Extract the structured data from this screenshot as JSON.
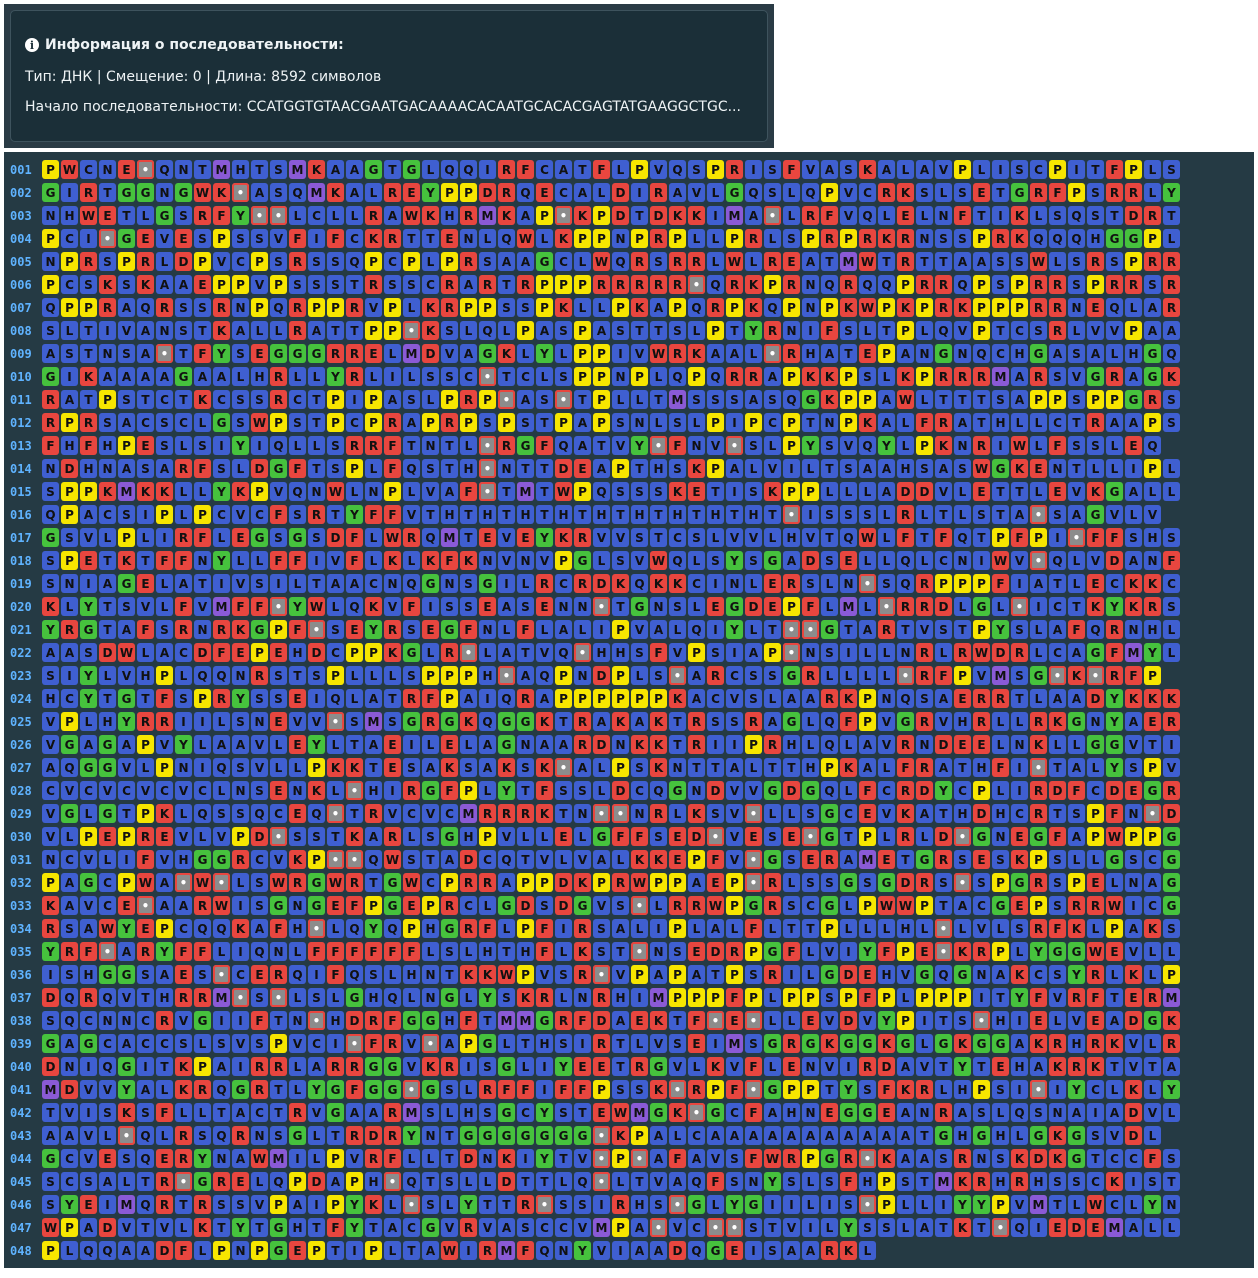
{
  "info": {
    "icon": "info-circle-icon",
    "title": "Информация о последовательности:",
    "meta": "Тип: ДНК | Смещение: 0 | Длина: 8592 символов",
    "start": "Начало последовательности: CCATGGTGTAACGAATGACAAAACACAATGCACACGAGTATGAAGGCTGC..."
  },
  "colors": {
    "red": "#e8463f",
    "blue": "#3f5fd1",
    "green": "#46c23d",
    "yellow": "#f7e600",
    "purple": "#8a5ad6",
    "gap": "#dcdcdc"
  },
  "rows": [
    {
      "n": "001",
      "s": "PWCNE*QNTMHTSMKAAGTGLQQIRFCATFLPVQSPRISFVASKALAVPLISCPITFPLS"
    },
    {
      "n": "002",
      "s": "GIRTGGNGWK*ASQMKALREYPPDRQECALDIRAVLGQSLQPVCRKSLSETGRFPSRRLY"
    },
    {
      "n": "003",
      "s": "NHWETLGSRFY**LCLLRAWKHRMKAP*KPDTDKKIMA*LRFVQLELNFTIKLSQSTDRT"
    },
    {
      "n": "004",
      "s": "PCI*GEVESPSSVFIFCKRTTENLQWLKPPNPRPLLPRLSPRPRKRNSSPRKQQQHGGPL"
    },
    {
      "n": "005",
      "s": "NPRSPRLDPVCPSRSSQPCPLPRSAAGCLWQRSRRLWLREATMWTRTTAASSWLSRSPRR"
    },
    {
      "n": "006",
      "s": "PCSKSKAAEPPVPSSSTRSSCRARTRPPPRRRRR*QRKPRNQRQQPRRQPSPRRSPRRSR"
    },
    {
      "n": "007",
      "s": "QPPRAQRSSRNPQRPPRVPLKRPPSSPKLLPKAPQRPKQPNPKWPKPRKPPPRRNEQLAR"
    },
    {
      "n": "008",
      "s": "SLTIVANSTKALLRATTPP*KSLQLPASPASTTSLPTYRNIFSLTPLQVPTCSRLVVPAA"
    },
    {
      "n": "009",
      "s": "ASTNSA*TFYSEGGGRRELMDVAGKLYLPPIVWRKAAL*RHATEPANGNQCHGASALHGQ"
    },
    {
      "n": "010",
      "s": "GIKAAAAGAALHRLLYRLILSSC*TCLSPPNPLQPQRRAPKKPSLKPRRRMARSVGRAGK"
    },
    {
      "n": "011",
      "s": "RATPSTCTKCSSRCTPIPASLPRP*AS*TPLLTMSSSASQGKPPAWLTTTSAPPSPPGRS"
    },
    {
      "n": "012",
      "s": "RPRSACSCLGSWPSTPCPRAPRPSPSTPAPSNLSLPIPCPTNPKALFRATHLLCTRAAPS"
    },
    {
      "n": "013",
      "s": "FHFHPESLSIYIQLLSRRFTNTL*RGFQATVY*FNV*SLPYSVQYLPKNRIWLFSSLEQ"
    },
    {
      "n": "014",
      "s": "NDHNASARFSLDGFTSPLFQSTH*NTTDEAPTHSKPALVILTSAAHSASWGKENTLLIPL"
    },
    {
      "n": "015",
      "s": "SPPKMKKLLYKPVQNWLNPLVAF*TMTWPQSSSKETISKPPLLLADDVLETTLEVKGALL"
    },
    {
      "n": "016",
      "s": "QPACSIPLPCVCFSRTYFFVTHTHTHTHTHTHTHTHTHT*ISSSLRLTLSTA*SAGVLV"
    },
    {
      "n": "017",
      "s": "GSVLPLIRFLEGSGSDFLWRQMTEVEYKRVVSTCSLVVLHVTQWLFTFQTPFPI*FFSHS"
    },
    {
      "n": "018",
      "s": "SPETKTFFNYLLFFIVFLKLKFKNVNVPGLSVWQLSYSGADSELLQLCNIWV*QLVDANF"
    },
    {
      "n": "019",
      "s": "SNIAGELATIVSILTAACNQGNSGILRCRDKQKKCINLERSLN*SQRPPPFIATLECKKC"
    },
    {
      "n": "020",
      "s": "KLYTSVLFVMFF*YWLQKVFISSEASENN*TGNSLEGDEPFLML*RRDLGL*ICTKYKRS"
    },
    {
      "n": "021",
      "s": "YRGTAFSRNRKGPF*SEYRSEGFNLFLALIPVALQIYLT**GTARTVSTPYSLAFQRNHL"
    },
    {
      "n": "022",
      "s": "AASDWLACDFEPEHDCPPKGLR*LATVQ*HHSFVPSIAP*NSILLNRLRWDRLCAGFMYL"
    },
    {
      "n": "023",
      "s": "SIYLVHPLQQNRSTSPLLLSPPPH*AQPNDPLS*ARCSSGRLLLL*RFPVMSG*K*RFP"
    },
    {
      "n": "024",
      "s": "HCYTGTFSPRYSSEIQLATRFPAIQRAPPPPPPKACVSLAARKPNQSAERRTLAADYKKK"
    },
    {
      "n": "025",
      "s": "VPLHYRRIILSNEVV*SMSGRGKQGGKTRAKAKTRSSRAGLQFPVGRVHRLLRKGNYAER"
    },
    {
      "n": "026",
      "s": "VGAGAPVYLAAVLEYLTAEILELAGNAARDNKKTRIIPRHLQLAVRNDEELNKLLGGVTI"
    },
    {
      "n": "027",
      "s": "AQGGVLPNIQSVLLPKKTESAKSAKSK*ALPSKNTTALTTHPKALFRATHFI*TALYSPV"
    },
    {
      "n": "028",
      "s": "CVCVCVCVCLNSENKL*HIRGFPLYTFSSLDCQGNDVVGDGQLFCRDYCPLIRDFCDEGR"
    },
    {
      "n": "029",
      "s": "VGLGTPKLQSSQCEQ*TRVCVCMRRRKTN**NRLKSV*LLSGCEVKATHDHCRTSPFN*D"
    },
    {
      "n": "030",
      "s": "VLPEPREVLVPD*SSTKARLSGHPVLLELGFFSED*VESE*GTPLRLD*GNEGFAPWPPG"
    },
    {
      "n": "031",
      "s": "NCVLIFVHGGRCVKP**QWSTADCQTVLVALKKEPFV*GSERAMETGRSESKPSLLGSCG"
    },
    {
      "n": "032",
      "s": "PAGCPWA*W*LSWRGWRTGWCPRRAPPDKPRWPPAEP*RLSSGSGDRS*SPGRSPELNAG"
    },
    {
      "n": "033",
      "s": "KAVCE*AARWISGNGEFPGEPRCLGDSDGVS*LRRWPGRSCGLPWWPTACGEPSRRWICG"
    },
    {
      "n": "034",
      "s": "RSAWYEPCQQKAFH*LQYQPHGRFLPFIRSALIPLALFLTTPLLLHL*LVLSRFKLPAKS"
    },
    {
      "n": "035",
      "s": "YRF*ARYFFLIQNLFFFFFFLSLHTHFLKST*NSEDRPGFLVIYFPE*KRPLYGGWEVLL"
    },
    {
      "n": "036",
      "s": "ISHGGSAES*CERQIFQSLHNTKKWPVSR*VPAPATPSRILGDEHVGQGNAKCSYRLKLP"
    },
    {
      "n": "037",
      "s": "DQRQVTHRRM*S*LSLGHQLNGLYSKRLNRHIMPPPFPLPPSPFPLPPPITYFVRFTERM"
    },
    {
      "n": "038",
      "s": "SQCNNCRVGIIFTN*HDRFGGHFTMMGRFDAEKTF*E*LLEVDVYPITS*HIELVEADGK"
    },
    {
      "n": "039",
      "s": "GAGCACCSLSVSPVCI*FRV*APGLTHSIRTLVSEIMSGRGKGGKGLGKGGAKRHRKVLR"
    },
    {
      "n": "040",
      "s": "DNIQGITKPAIRRLARRGGVKRISGLIYEETRGVLKVFLENVIRDAVTYTEHAKRKTVTA"
    },
    {
      "n": "041",
      "s": "MDVVYALKRQGRTLYGFGG*GSLRFFIFFPSSK*RPF*GPPTYSFKRLHPSI*IYCLKLY"
    },
    {
      "n": "042",
      "s": "TVISKSFLLTACTRVGAARMSLHSGCYSTEWMGK*GCFAHNEGGEANRASLQSNAIADVL"
    },
    {
      "n": "043",
      "s": "AAVL*QLRSQRNSGLTRDRYNTGGGGGGG*KPALCAAAAAAAAAAATGHGHLGKGSVDL"
    },
    {
      "n": "044",
      "s": "GCVESQERYNAWMILPVRFLLTDNKIYTV*P*AFAVSFWRPGR*KAASRNSKDKGTCCFS"
    },
    {
      "n": "045",
      "s": "SCSALTR*GRELQPDAPH*QTSLLDTTLQ*LTVAQFSNYSLSFHPSTMKRHRHSSCKIST"
    },
    {
      "n": "046",
      "s": "SYEIMQRTRSSVPAIPYKL*SLYTTR*SSIRHS*GLYGIILIS*PLLIYYPVMTLWCLYN"
    },
    {
      "n": "047",
      "s": "WPADVTVLKTYTGHTFYTACGVRVASCCVMPA*VC**STVILYSSLATKT*QIEDEMALL"
    },
    {
      "n": "048",
      "s": "PLQQAADFLPNPGEPTIPLTAWIRMFQNYVIAADQGEISAARKL"
    }
  ]
}
